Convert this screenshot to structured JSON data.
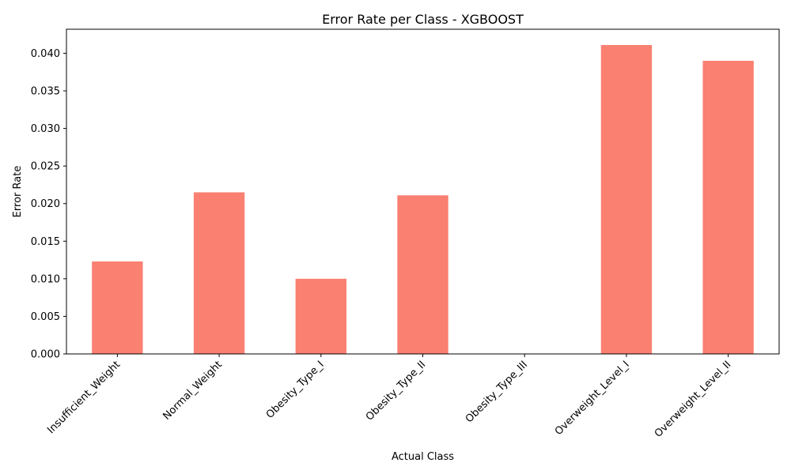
{
  "chart_data": {
    "type": "bar",
    "title": "Error Rate per Class - XGBOOST",
    "xlabel": "Actual Class",
    "ylabel": "Error Rate",
    "categories": [
      "Insufficient_Weight",
      "Normal_Weight",
      "Obesity_Type_I",
      "Obesity_Type_II",
      "Obesity_Type_III",
      "Overweight_Level_I",
      "Overweight_Level_II"
    ],
    "values": [
      0.0123,
      0.0215,
      0.01,
      0.0211,
      0.0,
      0.0411,
      0.039
    ],
    "yticks": [
      "0.000",
      "0.005",
      "0.010",
      "0.015",
      "0.020",
      "0.025",
      "0.030",
      "0.035",
      "0.040"
    ],
    "ylim": [
      0,
      0.0432
    ],
    "bar_color": "#fa8072",
    "grid": false,
    "legend": "none"
  }
}
